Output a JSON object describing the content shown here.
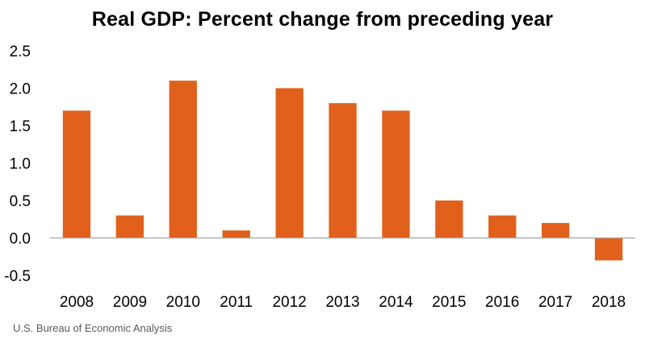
{
  "colors": {
    "bar": "#E0601C",
    "axis": "#A6A6A6",
    "text": "#000000",
    "source": "#595959"
  },
  "source": "U.S. Bureau of Economic Analysis",
  "chart_data": {
    "type": "bar",
    "title": "Real GDP:  Percent change from preceding year",
    "xlabel": "",
    "ylabel": "",
    "categories": [
      "2008",
      "2009",
      "2010",
      "2011",
      "2012",
      "2013",
      "2014",
      "2015",
      "2016",
      "2017",
      "2018"
    ],
    "values": [
      1.7,
      0.3,
      2.1,
      0.1,
      2.0,
      1.8,
      1.7,
      0.5,
      0.3,
      0.2,
      -0.3
    ],
    "ylim": [
      -0.5,
      2.5
    ],
    "yticks": [
      "-0.5",
      "0.0",
      "0.5",
      "1.0",
      "1.5",
      "2.0",
      "2.5"
    ],
    "grid": false,
    "legend": "none"
  }
}
